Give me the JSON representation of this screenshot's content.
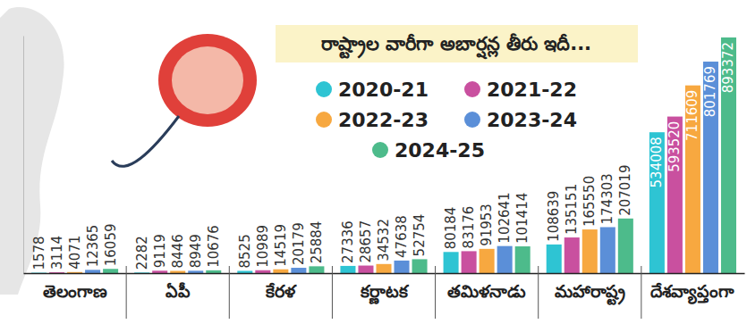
{
  "chart_data": {
    "type": "bar",
    "title": "రాష్ట్రాల వారీగా అబార్షన్ల తీరు ఇదీ...",
    "categories": [
      "తెలంగాణ",
      "ఏపీ",
      "కేరళ",
      "కర్ణాటక",
      "తమిళనాడు",
      "మహారాష్ట్ర",
      "దేశవ్యాప్తంగా"
    ],
    "series": [
      {
        "name": "2020-21",
        "color": "#2ec4d3",
        "values": [
          1578,
          2282,
          8525,
          27336,
          80184,
          108639,
          534008
        ]
      },
      {
        "name": "2021-22",
        "color": "#c9509f",
        "values": [
          3114,
          9119,
          10989,
          28657,
          83176,
          135151,
          593520
        ]
      },
      {
        "name": "2022-23",
        "color": "#f7a840",
        "values": [
          4071,
          8446,
          14519,
          34532,
          91953,
          165550,
          711609
        ]
      },
      {
        "name": "2023-24",
        "color": "#5b8fd8",
        "values": [
          12365,
          8949,
          20179,
          47638,
          102641,
          174303,
          801769
        ]
      },
      {
        "name": "2024-25",
        "color": "#4dbb8b",
        "values": [
          16059,
          10676,
          25884,
          52754,
          101414,
          207019,
          893372
        ]
      }
    ],
    "ylim": [
      0,
      900000
    ],
    "tick_labels": "x",
    "data_labels": true,
    "legend": "top"
  }
}
